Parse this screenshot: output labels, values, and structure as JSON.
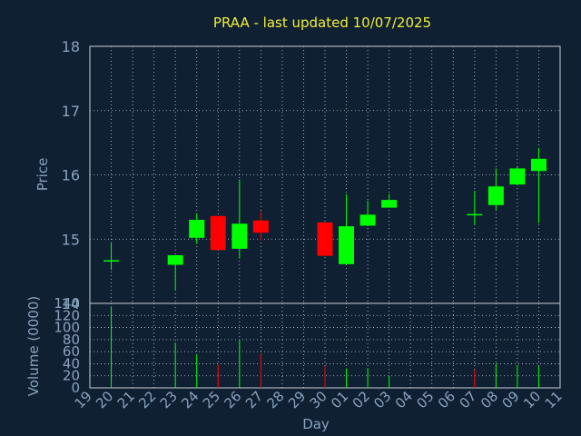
{
  "colors": {
    "background": "#0f2033",
    "title": "#f2ee3a",
    "axis_text": "#8aa2bd",
    "grid": "#c8d0da",
    "up": "#00ff00",
    "down": "#ff0000"
  },
  "chart_data": [
    {
      "type": "candlestick",
      "title": "PRAA - last updated 10/07/2025",
      "ylabel": "Price",
      "ylim": [
        14,
        18
      ],
      "yticks": [
        "14",
        "15",
        "16",
        "17",
        "18"
      ],
      "grid": true,
      "candles": [
        {
          "day": "20",
          "open": 14.66,
          "high": 14.95,
          "low": 14.52,
          "close": 14.66
        },
        {
          "day": "23",
          "open": 14.6,
          "high": 14.75,
          "low": 14.2,
          "close": 14.75
        },
        {
          "day": "24",
          "open": 15.02,
          "high": 15.4,
          "low": 14.93,
          "close": 15.3
        },
        {
          "day": "25",
          "open": 15.36,
          "high": 15.36,
          "low": 14.83,
          "close": 14.83
        },
        {
          "day": "26",
          "open": 14.85,
          "high": 15.93,
          "low": 14.7,
          "close": 15.24
        },
        {
          "day": "27",
          "open": 15.29,
          "high": 15.43,
          "low": 14.98,
          "close": 15.1
        },
        {
          "day": "30",
          "open": 15.26,
          "high": 15.26,
          "low": 14.74,
          "close": 14.74
        },
        {
          "day": "01",
          "open": 14.61,
          "high": 15.7,
          "low": 14.61,
          "close": 15.2
        },
        {
          "day": "02",
          "open": 15.21,
          "high": 15.6,
          "low": 15.2,
          "close": 15.38
        },
        {
          "day": "03",
          "open": 15.49,
          "high": 15.7,
          "low": 15.49,
          "close": 15.61
        },
        {
          "day": "07",
          "open": 15.38,
          "high": 15.75,
          "low": 15.22,
          "close": 15.38
        },
        {
          "day": "08",
          "open": 15.53,
          "high": 16.1,
          "low": 15.45,
          "close": 15.82
        },
        {
          "day": "09",
          "open": 15.85,
          "high": 16.12,
          "low": 15.85,
          "close": 16.1
        },
        {
          "day": "10",
          "open": 16.06,
          "high": 16.42,
          "low": 15.25,
          "close": 16.25
        }
      ]
    },
    {
      "type": "bar",
      "ylabel": "Volume (0000)",
      "xlabel": "Day",
      "ylim": [
        0,
        140
      ],
      "yticks": [
        "0",
        "20",
        "40",
        "60",
        "80",
        "100",
        "120",
        "140"
      ],
      "grid": true,
      "x_ticks": [
        "19",
        "20",
        "21",
        "22",
        "23",
        "24",
        "25",
        "26",
        "27",
        "28",
        "29",
        "30",
        "01",
        "02",
        "03",
        "04",
        "05",
        "06",
        "07",
        "08",
        "09",
        "10",
        "11"
      ],
      "bars": [
        {
          "day": "20",
          "value": 135,
          "direction": "up"
        },
        {
          "day": "23",
          "value": 75,
          "direction": "up"
        },
        {
          "day": "24",
          "value": 55,
          "direction": "up"
        },
        {
          "day": "25",
          "value": 38,
          "direction": "down"
        },
        {
          "day": "26",
          "value": 80,
          "direction": "up"
        },
        {
          "day": "27",
          "value": 57,
          "direction": "down"
        },
        {
          "day": "30",
          "value": 36,
          "direction": "down"
        },
        {
          "day": "01",
          "value": 32,
          "direction": "up"
        },
        {
          "day": "02",
          "value": 33,
          "direction": "up"
        },
        {
          "day": "03",
          "value": 20,
          "direction": "up"
        },
        {
          "day": "07",
          "value": 30,
          "direction": "down"
        },
        {
          "day": "08",
          "value": 40,
          "direction": "up"
        },
        {
          "day": "09",
          "value": 37,
          "direction": "up"
        },
        {
          "day": "10",
          "value": 36,
          "direction": "up"
        }
      ]
    }
  ]
}
